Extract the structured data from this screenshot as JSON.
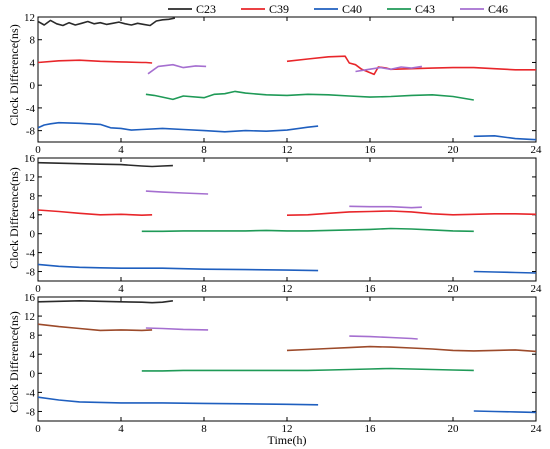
{
  "chart_data": {
    "type": "line",
    "xlabel": "Time(h)",
    "ylabel": "Clock Difference(ns)",
    "legend": {
      "placement": "top-center",
      "entries": [
        "C23",
        "C39",
        "C40",
        "C43",
        "C46"
      ]
    },
    "colors": {
      "C23": "#2a2a2a",
      "C39": "#e8262a",
      "C40": "#1f5fbf",
      "C43": "#1f9a57",
      "C46": "#a56fd0",
      "C39_panel3": "#9c4a2a"
    },
    "panels": [
      {
        "xlim": [
          0,
          24
        ],
        "ylim": [
          -10,
          12
        ],
        "xticks": [
          0,
          4,
          8,
          12,
          16,
          20,
          24
        ],
        "yticks": [
          -8,
          -4,
          0,
          4,
          8,
          12
        ],
        "series": [
          {
            "name": "C23",
            "x": [
              0,
              0.3,
              0.6,
              0.9,
              1.2,
              1.5,
              1.8,
              2.1,
              2.4,
              2.7,
              3.0,
              3.3,
              3.6,
              3.9,
              4.2,
              4.5,
              4.8,
              5.1,
              5.4,
              5.7,
              6.0,
              6.3,
              6.6
            ],
            "y": [
              11.2,
              10.6,
              11.4,
              10.8,
              10.5,
              11.0,
              10.6,
              10.9,
              11.2,
              10.8,
              11.0,
              10.7,
              10.9,
              11.1,
              10.8,
              10.6,
              10.9,
              10.7,
              10.5,
              11.3,
              11.5,
              11.6,
              11.8
            ]
          },
          {
            "name": "C39",
            "x": [
              0,
              1,
              2,
              3,
              4,
              5,
              5.2,
              5.5
            ],
            "y": [
              4.0,
              4.3,
              4.4,
              4.2,
              4.1,
              4.0,
              4.0,
              3.9
            ]
          },
          {
            "name": "C39",
            "x": [
              12,
              13,
              14,
              14.8,
              15.0,
              15.3,
              15.6,
              16.2,
              16.4,
              16.8,
              17.0,
              18,
              19,
              20,
              21,
              22,
              23,
              24
            ],
            "y": [
              4.2,
              4.6,
              5.0,
              5.1,
              3.9,
              3.6,
              2.8,
              1.9,
              3.2,
              3.0,
              2.8,
              2.9,
              3.0,
              3.1,
              3.1,
              2.9,
              2.7,
              2.7
            ]
          },
          {
            "name": "C40",
            "x": [
              0,
              0.3,
              0.6,
              1,
              2,
              3,
              3.5,
              4,
              4.5,
              5,
              6,
              7,
              8,
              9,
              10,
              11,
              12,
              13,
              13.5
            ],
            "y": [
              -7.5,
              -7.0,
              -6.8,
              -6.6,
              -6.7,
              -6.9,
              -7.5,
              -7.6,
              -7.9,
              -7.8,
              -7.6,
              -7.8,
              -8.0,
              -8.2,
              -8.0,
              -8.1,
              -7.9,
              -7.4,
              -7.2
            ]
          },
          {
            "name": "C40",
            "x": [
              21,
              22,
              23,
              24
            ],
            "y": [
              -9.0,
              -8.9,
              -9.4,
              -9.6
            ]
          },
          {
            "name": "C43",
            "x": [
              5.2,
              5.6,
              6.0,
              6.5,
              7,
              8,
              8.5,
              9,
              9.5,
              10,
              11,
              12,
              13,
              14,
              15,
              16,
              17,
              18,
              19,
              20,
              21
            ],
            "y": [
              -1.6,
              -1.8,
              -2.1,
              -2.5,
              -1.9,
              -2.2,
              -1.6,
              -1.5,
              -1.1,
              -1.4,
              -1.7,
              -1.8,
              -1.6,
              -1.7,
              -1.9,
              -2.1,
              -2.0,
              -1.8,
              -1.7,
              -2.0,
              -2.6
            ]
          },
          {
            "name": "C46",
            "x": [
              5.3,
              5.8,
              6.5,
              7,
              7.6,
              8.1
            ],
            "y": [
              2.0,
              3.3,
              3.6,
              3.1,
              3.4,
              3.3
            ]
          },
          {
            "name": "C46",
            "x": [
              15.3,
              15.8,
              16.5,
              17,
              17.5,
              18,
              18.5
            ],
            "y": [
              2.4,
              2.7,
              3.1,
              2.8,
              3.2,
              3.0,
              3.3
            ]
          }
        ]
      },
      {
        "xlim": [
          0,
          24
        ],
        "ylim": [
          -10,
          16
        ],
        "xticks": [
          0,
          4,
          8,
          12,
          16,
          20,
          24
        ],
        "yticks": [
          -8,
          -4,
          0,
          4,
          8,
          12,
          16
        ],
        "series": [
          {
            "name": "C23",
            "x": [
              0,
              1,
              2,
              3,
              4,
              5,
              5.5,
              6.0,
              6.5
            ],
            "y": [
              15.0,
              14.9,
              14.8,
              14.7,
              14.6,
              14.3,
              14.2,
              14.3,
              14.4
            ]
          },
          {
            "name": "C39",
            "x": [
              0,
              1,
              2,
              3,
              4,
              5,
              5.5
            ],
            "y": [
              5.0,
              4.7,
              4.3,
              4.0,
              4.1,
              3.9,
              4.0
            ]
          },
          {
            "name": "C39",
            "x": [
              12,
              13,
              14,
              15,
              16,
              17,
              18,
              19,
              20,
              21,
              22,
              23,
              24
            ],
            "y": [
              3.9,
              4.0,
              4.3,
              4.6,
              4.7,
              4.8,
              4.6,
              4.2,
              4.0,
              4.1,
              4.2,
              4.2,
              4.1
            ]
          },
          {
            "name": "C40",
            "x": [
              0,
              1,
              2,
              3,
              4,
              6,
              8,
              10,
              12,
              13.5
            ],
            "y": [
              -6.5,
              -6.9,
              -7.1,
              -7.2,
              -7.3,
              -7.3,
              -7.5,
              -7.6,
              -7.7,
              -7.8
            ]
          },
          {
            "name": "C40",
            "x": [
              21,
              22,
              23,
              24
            ],
            "y": [
              -8.0,
              -8.1,
              -8.2,
              -8.3
            ]
          },
          {
            "name": "C43",
            "x": [
              5,
              6,
              7,
              8,
              9,
              10,
              11,
              12,
              13,
              14,
              15,
              16,
              17,
              18,
              19,
              20,
              21
            ],
            "y": [
              0.5,
              0.5,
              0.6,
              0.6,
              0.6,
              0.6,
              0.7,
              0.6,
              0.6,
              0.7,
              0.8,
              0.9,
              1.1,
              1.0,
              0.8,
              0.6,
              0.5
            ]
          },
          {
            "name": "C46",
            "x": [
              5.2,
              6,
              7,
              8.2
            ],
            "y": [
              9.0,
              8.8,
              8.6,
              8.4
            ]
          },
          {
            "name": "C46",
            "x": [
              15,
              16,
              17,
              18,
              18.5
            ],
            "y": [
              5.8,
              5.7,
              5.7,
              5.5,
              5.6
            ]
          }
        ]
      },
      {
        "xlim": [
          0,
          24
        ],
        "ylim": [
          -10,
          16
        ],
        "xticks": [
          0,
          4,
          8,
          12,
          16,
          20,
          24
        ],
        "yticks": [
          -8,
          -4,
          0,
          4,
          8,
          12,
          16
        ],
        "series": [
          {
            "name": "C23",
            "x": [
              0,
              1,
              2,
              3,
              4,
              5,
              5.5,
              6,
              6.5
            ],
            "y": [
              15.0,
              15.1,
              15.2,
              15.1,
              15.0,
              14.9,
              14.8,
              14.9,
              15.2
            ]
          },
          {
            "name": "C39",
            "x": [
              0,
              1,
              2,
              3,
              4,
              5,
              5.5
            ],
            "y": [
              10.3,
              9.8,
              9.4,
              9.0,
              9.1,
              9.0,
              9.1
            ]
          },
          {
            "name": "C39",
            "x": [
              12,
              13,
              14,
              15,
              16,
              17,
              18,
              19,
              20,
              21,
              22,
              23,
              24
            ],
            "y": [
              4.8,
              5.0,
              5.2,
              5.4,
              5.6,
              5.5,
              5.3,
              5.1,
              4.8,
              4.7,
              4.8,
              4.9,
              4.6
            ]
          },
          {
            "name": "C40",
            "x": [
              0,
              1,
              2,
              3,
              4,
              6,
              8,
              10,
              12,
              13.5
            ],
            "y": [
              -5.0,
              -5.6,
              -6.0,
              -6.1,
              -6.2,
              -6.2,
              -6.3,
              -6.4,
              -6.5,
              -6.6
            ]
          },
          {
            "name": "C40",
            "x": [
              21,
              22,
              23,
              24
            ],
            "y": [
              -7.9,
              -8.0,
              -8.1,
              -8.2
            ]
          },
          {
            "name": "C43",
            "x": [
              5,
              6,
              7,
              8,
              9,
              10,
              11,
              12,
              13,
              14,
              15,
              16,
              17,
              18,
              19,
              20,
              21
            ],
            "y": [
              0.5,
              0.5,
              0.6,
              0.6,
              0.6,
              0.6,
              0.6,
              0.6,
              0.6,
              0.7,
              0.8,
              0.9,
              1.0,
              0.9,
              0.8,
              0.7,
              0.6
            ]
          },
          {
            "name": "C46",
            "x": [
              5.2,
              6,
              7,
              8.2
            ],
            "y": [
              9.5,
              9.4,
              9.2,
              9.1
            ]
          },
          {
            "name": "C46",
            "x": [
              15,
              16,
              17,
              18,
              18.3
            ],
            "y": [
              7.8,
              7.7,
              7.5,
              7.3,
              7.2
            ]
          }
        ]
      }
    ]
  }
}
